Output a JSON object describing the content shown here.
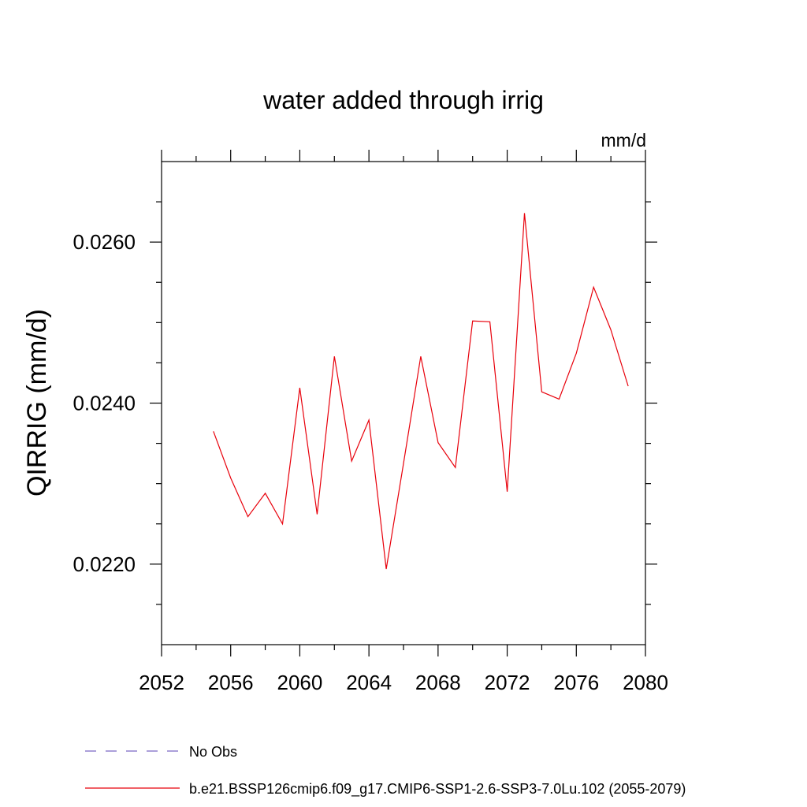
{
  "chart_data": {
    "type": "line",
    "title": "water added through irrig",
    "units": "mm/d",
    "ylabel": "QIRRIG  (mm/d)",
    "xlabel": "",
    "xlim": [
      2052,
      2080
    ],
    "ylim": [
      0.021,
      0.027
    ],
    "x_ticks": [
      2052,
      2056,
      2060,
      2064,
      2068,
      2072,
      2076,
      2080
    ],
    "x_tick_labels": [
      "2052",
      "2056",
      "2060",
      "2064",
      "2068",
      "2072",
      "2076",
      "2080"
    ],
    "y_ticks": [
      0.022,
      0.024,
      0.026
    ],
    "y_tick_labels": [
      "0.0220",
      "0.0240",
      "0.0260"
    ],
    "y_minor_step": 0.0005,
    "grid": false,
    "legend_position": "bottom-left",
    "series": [
      {
        "name": "b.e21.BSSP126cmip6.f09_g17.CMIP6-SSP1-2.6-SSP3-7.0Lu.102 (2055-2079)",
        "color": "#e8000b",
        "dash": "solid",
        "x": [
          2055,
          2056,
          2057,
          2058,
          2059,
          2060,
          2061,
          2062,
          2063,
          2064,
          2065,
          2066,
          2067,
          2068,
          2069,
          2070,
          2071,
          2072,
          2073,
          2074,
          2075,
          2076,
          2077,
          2078,
          2079
        ],
        "y": [
          0.02365,
          0.02307,
          0.02259,
          0.02288,
          0.0225,
          0.02419,
          0.02262,
          0.02458,
          0.02328,
          0.02379,
          0.02194,
          0.02325,
          0.02458,
          0.02351,
          0.0232,
          0.02502,
          0.02501,
          0.0229,
          0.02636,
          0.02414,
          0.02405,
          0.02462,
          0.02544,
          0.02491,
          0.02421
        ]
      }
    ],
    "legend": [
      {
        "label": "No Obs",
        "color": "#7a68c4",
        "dash": "dashed"
      },
      {
        "label": "b.e21.BSSP126cmip6.f09_g17.CMIP6-SSP1-2.6-SSP3-7.0Lu.102 (2055-2079)",
        "color": "#e8000b",
        "dash": "solid"
      }
    ]
  }
}
